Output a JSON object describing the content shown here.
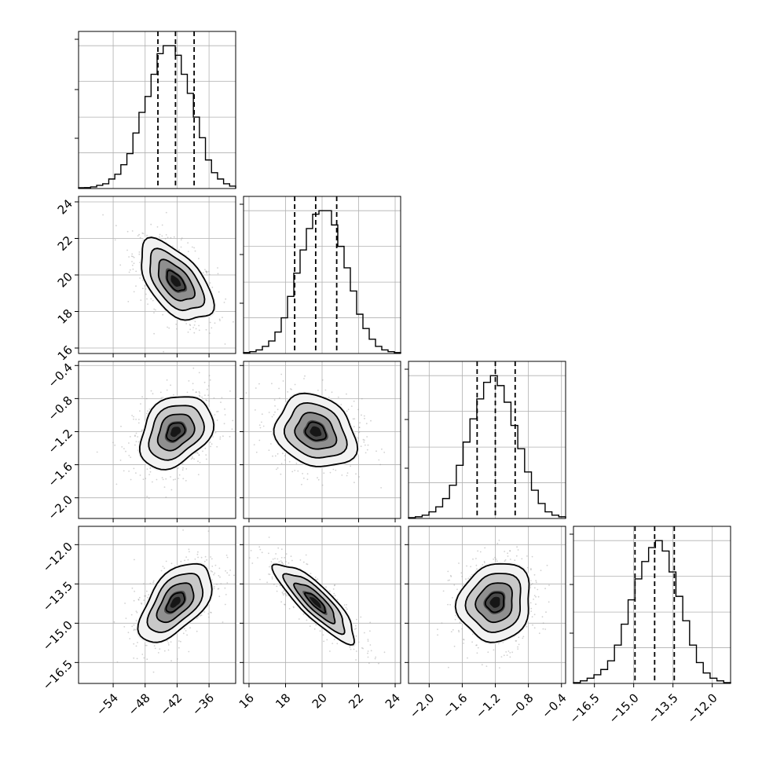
{
  "chart_data": {
    "type": "corner",
    "grid": true,
    "parameters": [
      {
        "index": 0,
        "range": [
          -60.5,
          -31
        ],
        "ticks": [
          -54,
          -48,
          -42,
          -36
        ],
        "tick_labels": [
          "−54",
          "−48",
          "−42",
          "−36"
        ],
        "mean": -42.3,
        "sd": 3.4,
        "quantiles": [
          -45.6,
          -42.3,
          -38.8
        ],
        "hist_bins": [
          0.5,
          0.6,
          1,
          2,
          3,
          6,
          9,
          15,
          22,
          35,
          48,
          58,
          72,
          85,
          90,
          90,
          84,
          72,
          60,
          45,
          32,
          18,
          10,
          6,
          3,
          1.5
        ]
      },
      {
        "index": 1,
        "range": [
          15.7,
          24.3
        ],
        "ticks": [
          16,
          18,
          20,
          22,
          24
        ],
        "tick_labels": [
          "16",
          "18",
          "20",
          "22",
          "24"
        ],
        "mean": 19.65,
        "sd": 1.1,
        "quantiles": [
          18.5,
          19.65,
          20.8
        ],
        "hist_bins": [
          0.5,
          1,
          2,
          4,
          7,
          12,
          20,
          32,
          45,
          58,
          70,
          78,
          80,
          80,
          72,
          60,
          48,
          35,
          22,
          14,
          8,
          4,
          2,
          1,
          0.5
        ]
      },
      {
        "index": 2,
        "range": [
          -2.25,
          -0.35
        ],
        "ticks": [
          -2.0,
          -1.6,
          -1.2,
          -0.8,
          -0.4
        ],
        "tick_labels": [
          "−2.0",
          "−1.6",
          "−1.2",
          "−0.8",
          "−0.4"
        ],
        "mean": -1.2,
        "sd": 0.22,
        "quantiles": [
          -1.42,
          -1.2,
          -0.96
        ],
        "hist_bins": [
          0.5,
          1,
          2,
          4,
          7,
          12,
          20,
          32,
          46,
          60,
          72,
          82,
          86,
          80,
          70,
          56,
          42,
          28,
          17,
          9,
          4,
          2,
          1
        ]
      },
      {
        "index": 3,
        "range": [
          -17.3,
          -11.3
        ],
        "ticks": [
          -16.5,
          -15.0,
          -13.5,
          -12.0
        ],
        "tick_labels": [
          "−16.5",
          "−15.0",
          "−13.5",
          "−12.0"
        ],
        "mean": -14.2,
        "sd": 0.75,
        "quantiles": [
          -14.95,
          -14.2,
          -13.45
        ],
        "hist_bins": [
          0.5,
          1.5,
          3,
          5,
          8,
          13,
          22,
          34,
          48,
          60,
          70,
          78,
          82,
          76,
          64,
          50,
          36,
          22,
          12,
          6,
          3,
          1.5,
          0.5
        ]
      }
    ],
    "correlations": [
      [
        1,
        -0.55,
        0.3,
        0.55
      ],
      [
        -0.55,
        1,
        -0.2,
        -0.85
      ],
      [
        0.3,
        -0.2,
        1,
        0.1
      ],
      [
        0.55,
        -0.85,
        0.1,
        1
      ]
    ],
    "y_axis_ticks": {
      "rows": [
        {
          "row": 1,
          "ticks": [
            16,
            18,
            20,
            22,
            24
          ],
          "tick_labels": [
            "16",
            "18",
            "20",
            "22",
            "24"
          ]
        },
        {
          "row": 2,
          "ticks": [
            -2.0,
            -1.6,
            -1.2,
            -0.8,
            -0.4
          ],
          "tick_labels": [
            "−2.0",
            "−1.6",
            "−1.2",
            "−0.8",
            "−0.4"
          ]
        },
        {
          "row": 3,
          "ticks": [
            -16.5,
            -15.0,
            -13.5,
            -12.0
          ],
          "tick_labels": [
            "−16.5",
            "−15.0",
            "−13.5",
            "−12.0"
          ]
        }
      ]
    },
    "contour_levels_sigma": [
      0.5,
      1.0,
      1.5,
      2.0
    ],
    "colors": {
      "line": "#000000",
      "grid": "#b0b0b0",
      "scatter": "#9a9a9a"
    }
  }
}
